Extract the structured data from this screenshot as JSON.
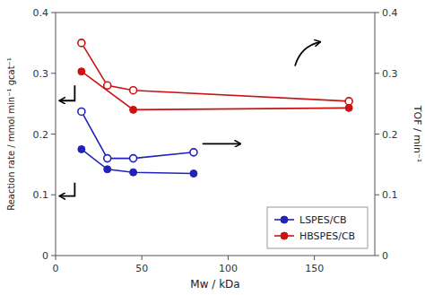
{
  "chart_data": {
    "type": "line",
    "xlabel": "Mw / kDa",
    "ylabel": "Reaction rate / mmol min⁻¹ gcat⁻¹",
    "y2label": "TOF / min⁻¹",
    "xlim": [
      0,
      185
    ],
    "xticks": [
      0,
      50,
      100,
      150
    ],
    "ylim": [
      0,
      0.4
    ],
    "yticks": [
      0,
      0.1,
      0.2,
      0.3,
      0.4
    ],
    "y2lim": [
      0,
      0.4
    ],
    "y2ticks": [
      0,
      0.1,
      0.2,
      0.3,
      0.4
    ],
    "grid": false,
    "legend": "lower right",
    "series": [
      {
        "name": "LSPES/CB",
        "color": "#2222bb",
        "marker": "circle",
        "x": [
          15,
          30,
          45,
          80
        ],
        "values": [
          0.175,
          0.142,
          0.137,
          0.135
        ]
      },
      {
        "name": "LSPES/CB",
        "color": "#2222bb",
        "marker": "circle-open",
        "axis": "y2",
        "x": [
          15,
          30,
          45,
          80
        ],
        "values": [
          0.237,
          0.16,
          0.16,
          0.17
        ]
      },
      {
        "name": "HBSPES/CB",
        "color": "#cc1111",
        "marker": "circle",
        "x": [
          15,
          45,
          170
        ],
        "values": [
          0.303,
          0.24,
          0.243
        ]
      },
      {
        "name": "HBSPES/CB",
        "color": "#cc1111",
        "marker": "circle-open",
        "axis": "y2",
        "x": [
          15,
          30,
          45,
          170
        ],
        "values": [
          0.35,
          0.28,
          0.272,
          0.254
        ]
      }
    ]
  }
}
